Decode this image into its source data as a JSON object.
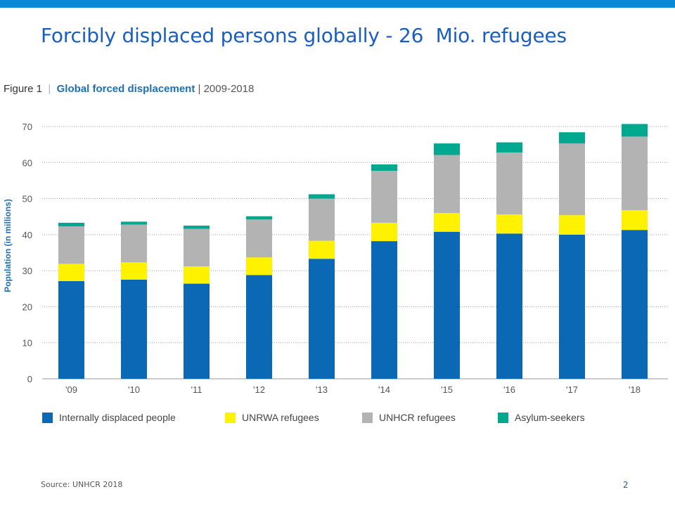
{
  "slide": {
    "title": "Forcibly displaced persons globally - 26  Mio. refugees",
    "source": "Source: UNHCR 2018",
    "page_number": "2",
    "accent_color": "#0a8ad6",
    "title_color": "#1a5fc0"
  },
  "figure": {
    "label": "Figure 1",
    "separator": "|",
    "title": "Global forced displacement",
    "years": "| 2009-2018"
  },
  "chart_data": {
    "type": "bar",
    "stacked": true,
    "title": "Global forced displacement",
    "ylabel": "Population (in millions)",
    "xlabel": "",
    "ylim": [
      0,
      70
    ],
    "yticks": [
      0,
      10,
      20,
      30,
      40,
      50,
      60,
      70
    ],
    "grid": true,
    "legend_position": "bottom",
    "categories": [
      "'09",
      "'10",
      "'11",
      "'12",
      "'13",
      "'14",
      "'15",
      "'16",
      "'17",
      "'18"
    ],
    "series": [
      {
        "name": "Internally displaced people",
        "color": "#0b68b4",
        "values": [
          27.1,
          27.5,
          26.4,
          28.8,
          33.3,
          38.2,
          40.8,
          40.3,
          40.0,
          41.3
        ]
      },
      {
        "name": "UNRWA refugees",
        "color": "#fff200",
        "values": [
          4.8,
          4.8,
          4.8,
          4.9,
          5.0,
          5.1,
          5.2,
          5.3,
          5.4,
          5.5
        ]
      },
      {
        "name": "UNHCR refugees",
        "color": "#b3b3b3",
        "values": [
          10.4,
          10.5,
          10.4,
          10.5,
          11.7,
          14.4,
          16.1,
          17.2,
          19.9,
          20.4
        ]
      },
      {
        "name": "Asylum-seekers",
        "color": "#00a88f",
        "values": [
          1.0,
          0.8,
          0.9,
          0.9,
          1.2,
          1.8,
          3.2,
          2.8,
          3.1,
          3.5
        ]
      }
    ]
  }
}
